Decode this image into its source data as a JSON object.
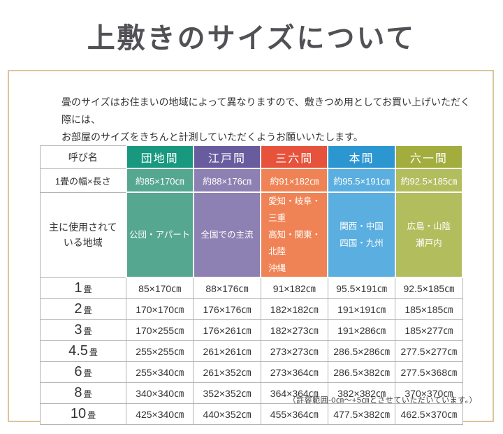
{
  "page": {
    "title": "上敷きのサイズについて",
    "intro": [
      "畳のサイズはお住まいの地域によって異なりますので、敷きつめ用としてお買い上げいただく際には、",
      "お部屋のサイズをきちんと計測していただくようお願いいたします。"
    ],
    "footnote": "（許容範囲-0㎝～+5㎝とさせていただいています。）"
  },
  "frame_color": "#dcc49c",
  "table": {
    "corner_header": "呼び名",
    "width_row_label": "1畳の幅×長さ",
    "region_row_label": [
      "主に使用されて",
      "いる地域"
    ],
    "columns": [
      {
        "name": "団地間",
        "color": "#18997F",
        "light_color": "#56A78F",
        "width": "約85×170㎝",
        "region": [
          "公団・アパート"
        ]
      },
      {
        "name": "江戸間",
        "color": "#695C9E",
        "light_color": "#8C81B2",
        "width": "約88×176㎝",
        "region": [
          "全国での主流"
        ]
      },
      {
        "name": "三六間",
        "color": "#E6523C",
        "light_color": "#F08355",
        "width": "約91×182㎝",
        "region": [
          "愛知・岐阜・三重",
          "高知・関東・北陸",
          "沖縄"
        ],
        "region_align": "left"
      },
      {
        "name": "本間",
        "color": "#2C96D1",
        "light_color": "#5BAFE0",
        "width": "約95.5×191㎝",
        "region": [
          "関西・中国",
          "四国・九州"
        ]
      },
      {
        "name": "六一間",
        "color": "#A2AD3E",
        "light_color": "#B2BD5E",
        "width": "約92.5×185㎝",
        "region": [
          "広島・山陰",
          "瀬戸内"
        ]
      }
    ],
    "size_rows": [
      {
        "label": "1",
        "unit": "畳",
        "values": [
          "85×170㎝",
          "88×176㎝",
          "91×182㎝",
          "95.5×191㎝",
          "92.5×185㎝"
        ]
      },
      {
        "label": "2",
        "unit": "畳",
        "values": [
          "170×170㎝",
          "176×176㎝",
          "182×182㎝",
          "191×191㎝",
          "185×185㎝"
        ]
      },
      {
        "label": "3",
        "unit": "畳",
        "values": [
          "170×255㎝",
          "176×261㎝",
          "182×273㎝",
          "191×286㎝",
          "185×277㎝"
        ]
      },
      {
        "label": "4.5",
        "unit": "畳",
        "values": [
          "255×255㎝",
          "261×261㎝",
          "273×273㎝",
          "286.5×286㎝",
          "277.5×277㎝"
        ]
      },
      {
        "label": "6",
        "unit": "畳",
        "values": [
          "255×340㎝",
          "261×352㎝",
          "273×364㎝",
          "286.5×382㎝",
          "277.5×368㎝"
        ]
      },
      {
        "label": "8",
        "unit": "畳",
        "values": [
          "340×340㎝",
          "352×352㎝",
          "364×364㎝",
          "382×382㎝",
          "370×370㎝"
        ]
      },
      {
        "label": "10",
        "unit": "畳",
        "values": [
          "425×340㎝",
          "440×352㎝",
          "455×364㎝",
          "477.5×382㎝",
          "462.5×370㎝"
        ]
      }
    ]
  }
}
